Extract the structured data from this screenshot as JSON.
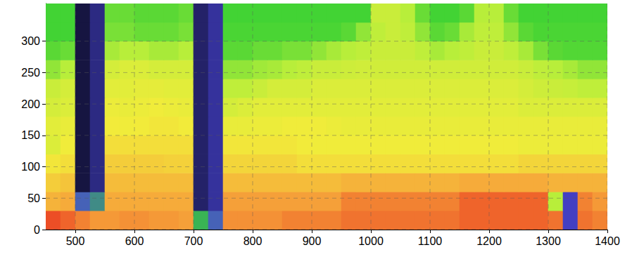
{
  "chart_data": {
    "type": "heatmap",
    "x_bins": [
      450,
      475,
      500,
      525,
      550,
      575,
      600,
      625,
      650,
      675,
      700,
      725,
      750,
      775,
      800,
      825,
      850,
      875,
      900,
      925,
      950,
      975,
      1000,
      1025,
      1050,
      1075,
      1100,
      1125,
      1150,
      1175,
      1200,
      1225,
      1250,
      1275,
      1300,
      1325,
      1350,
      1375,
      1400
    ],
    "y_bins": [
      0,
      30,
      60,
      90,
      120,
      150,
      180,
      210,
      240,
      270,
      300,
      330,
      360
    ],
    "cells": [
      [
        95,
        92,
        88,
        85,
        85,
        86,
        86,
        85,
        85,
        84,
        30,
        20,
        86,
        86,
        86,
        86,
        88,
        88,
        88,
        88,
        90,
        90,
        90,
        90,
        90,
        90,
        90,
        90,
        92,
        92,
        92,
        92,
        92,
        92,
        90,
        15,
        90,
        88
      ],
      [
        80,
        82,
        20,
        25,
        82,
        82,
        82,
        82,
        82,
        82,
        8,
        12,
        84,
        84,
        84,
        84,
        84,
        84,
        84,
        84,
        88,
        88,
        88,
        88,
        88,
        88,
        88,
        88,
        92,
        92,
        92,
        92,
        92,
        92,
        50,
        15,
        88,
        85
      ],
      [
        74,
        76,
        5,
        10,
        78,
        78,
        78,
        78,
        78,
        78,
        8,
        12,
        78,
        78,
        78,
        78,
        78,
        78,
        78,
        78,
        80,
        80,
        80,
        80,
        80,
        80,
        80,
        80,
        82,
        82,
        82,
        82,
        82,
        82,
        80,
        80,
        80,
        80
      ],
      [
        68,
        70,
        5,
        10,
        74,
        74,
        74,
        74,
        73,
        73,
        8,
        12,
        72,
        72,
        72,
        72,
        72,
        70,
        70,
        70,
        70,
        70,
        70,
        70,
        70,
        70,
        70,
        70,
        70,
        70,
        70,
        70,
        72,
        72,
        72,
        72,
        72,
        72
      ],
      [
        60,
        66,
        5,
        10,
        70,
        70,
        70,
        70,
        70,
        70,
        8,
        12,
        68,
        68,
        68,
        68,
        68,
        67,
        66,
        66,
        66,
        66,
        66,
        66,
        66,
        66,
        66,
        66,
        66,
        66,
        66,
        66,
        65,
        65,
        65,
        65,
        65,
        65
      ],
      [
        62,
        64,
        5,
        10,
        67,
        66,
        67,
        68,
        68,
        67,
        8,
        12,
        64,
        64,
        65,
        65,
        66,
        66,
        66,
        65,
        64,
        64,
        64,
        64,
        64,
        64,
        64,
        64,
        64,
        64,
        64,
        64,
        64,
        64,
        64,
        64,
        64,
        64
      ],
      [
        58,
        60,
        5,
        10,
        65,
        64,
        65,
        66,
        65,
        64,
        8,
        12,
        58,
        60,
        62,
        62,
        62,
        62,
        62,
        62,
        62,
        62,
        62,
        62,
        62,
        62,
        62,
        62,
        62,
        62,
        62,
        62,
        60,
        60,
        60,
        60,
        60,
        60
      ],
      [
        55,
        58,
        5,
        10,
        62,
        62,
        63,
        63,
        62,
        62,
        8,
        12,
        52,
        52,
        55,
        58,
        58,
        58,
        60,
        60,
        60,
        60,
        60,
        60,
        60,
        60,
        60,
        60,
        60,
        60,
        60,
        60,
        58,
        56,
        55,
        54,
        52,
        52
      ],
      [
        45,
        50,
        5,
        10,
        58,
        60,
        60,
        58,
        58,
        58,
        8,
        12,
        45,
        45,
        47,
        48,
        50,
        52,
        55,
        55,
        56,
        57,
        57,
        57,
        57,
        57,
        57,
        57,
        57,
        57,
        57,
        57,
        55,
        52,
        50,
        48,
        45,
        45
      ],
      [
        38,
        40,
        5,
        10,
        48,
        50,
        50,
        48,
        48,
        50,
        8,
        12,
        38,
        38,
        40,
        40,
        42,
        42,
        45,
        48,
        50,
        52,
        55,
        55,
        55,
        52,
        48,
        50,
        52,
        55,
        55,
        52,
        48,
        42,
        38,
        37,
        37,
        37
      ],
      [
        35,
        35,
        5,
        10,
        42,
        42,
        40,
        40,
        40,
        42,
        8,
        12,
        36,
        36,
        36,
        36,
        36,
        36,
        36,
        36,
        38,
        45,
        52,
        55,
        52,
        45,
        38,
        40,
        48,
        52,
        52,
        45,
        38,
        36,
        36,
        36,
        36,
        36
      ],
      [
        35,
        35,
        5,
        10,
        40,
        40,
        38,
        38,
        38,
        40,
        8,
        12,
        35,
        35,
        35,
        35,
        35,
        35,
        35,
        35,
        35,
        35,
        55,
        55,
        50,
        40,
        35,
        35,
        38,
        50,
        50,
        40,
        35,
        35,
        35,
        35,
        35,
        35
      ]
    ],
    "color_range": [
      0,
      100
    ],
    "colors": [
      "#000000",
      "#4a46d8",
      "#35d033",
      "#b8ee3a",
      "#f2ec3a",
      "#f6a53a",
      "#e8281e"
    ],
    "xlim": [
      450,
      1400
    ],
    "ylim": [
      0,
      360
    ],
    "xticks": [
      500,
      600,
      700,
      800,
      900,
      1000,
      1100,
      1200,
      1300,
      1400
    ],
    "yticks": [
      0,
      50,
      100,
      150,
      200,
      250,
      300
    ],
    "grid": true
  }
}
